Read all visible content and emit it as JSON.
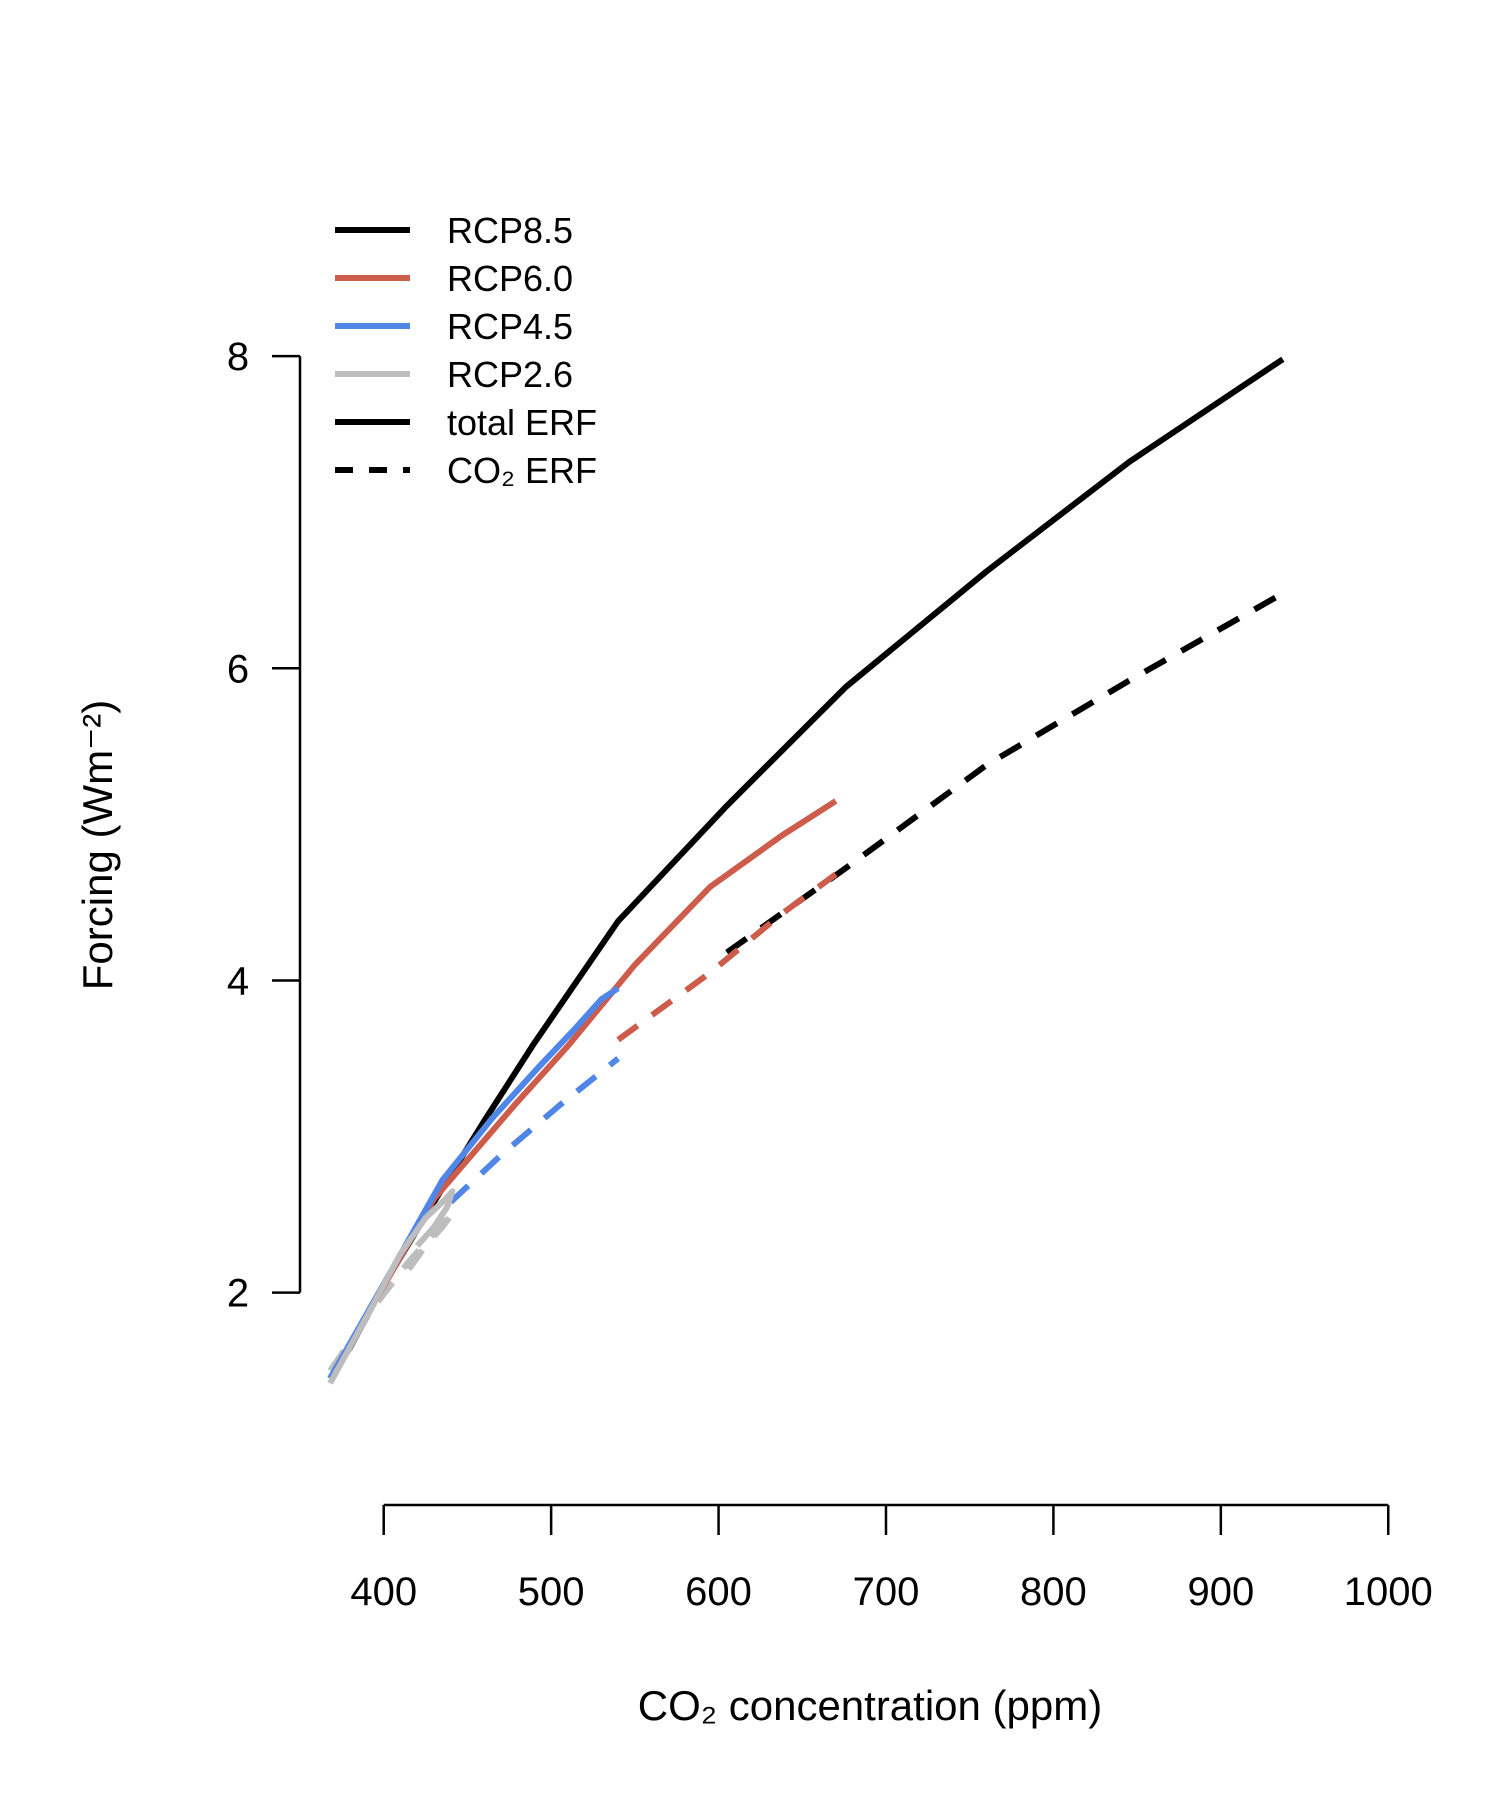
{
  "chart_data": {
    "type": "line",
    "xlabel": "CO₂ concentration (ppm)",
    "ylabel": "Forcing (Wm⁻²)",
    "xlim": [
      350,
      1010
    ],
    "ylim": [
      0.8,
      9.0
    ],
    "x_axis_range": [
      400,
      1000
    ],
    "y_axis_range": [
      2,
      8
    ],
    "xticks": [
      400,
      500,
      600,
      700,
      800,
      900,
      1000
    ],
    "yticks": [
      2,
      4,
      6,
      8
    ],
    "grid": false,
    "legend_position": "top-left",
    "legend": [
      {
        "label": "RCP8.5",
        "color": "#000000",
        "dash": "solid"
      },
      {
        "label": "RCP6.0",
        "color": "#cd5c4b",
        "dash": "solid"
      },
      {
        "label": "RCP4.5",
        "color": "#4f86e8",
        "dash": "solid"
      },
      {
        "label": "RCP2.6",
        "color": "#bdbdbd",
        "dash": "solid"
      },
      {
        "label": "total ERF",
        "color": "#000000",
        "dash": "solid"
      },
      {
        "label": "CO₂ ERF",
        "color": "#000000",
        "dash": "dashed"
      }
    ],
    "series": [
      {
        "scenario": "RCP8.5",
        "kind": "total ERF",
        "color": "#000000",
        "dash": "solid",
        "x": [
          368,
          380,
          400,
          430,
          460,
          490,
          540,
          605,
          676,
          760,
          845,
          937
        ],
        "y": [
          1.45,
          1.65,
          2.05,
          2.58,
          3.1,
          3.6,
          4.38,
          5.12,
          5.88,
          6.62,
          7.32,
          7.98
        ]
      },
      {
        "scenario": "RCP8.5",
        "kind": "CO₂ ERF",
        "color": "#000000",
        "dash": "dashed",
        "x": [
          605,
          676,
          760,
          845,
          937
        ],
        "y": [
          4.18,
          4.72,
          5.38,
          5.92,
          6.48
        ]
      },
      {
        "scenario": "RCP6.0",
        "kind": "total ERF",
        "color": "#cd5c4b",
        "dash": "solid",
        "x": [
          368,
          395,
          430,
          478,
          510,
          550,
          595,
          638,
          670
        ],
        "y": [
          1.45,
          1.95,
          2.6,
          3.2,
          3.58,
          4.1,
          4.6,
          4.93,
          5.15
        ]
      },
      {
        "scenario": "RCP6.0",
        "kind": "CO₂ ERF",
        "color": "#cd5c4b",
        "dash": "dashed",
        "x": [
          540,
          595,
          638,
          670
        ],
        "y": [
          3.62,
          4.05,
          4.43,
          4.68
        ]
      },
      {
        "scenario": "RCP4.5",
        "kind": "total ERF",
        "color": "#4f86e8",
        "dash": "solid",
        "x": [
          368,
          405,
          435,
          465,
          493,
          515,
          530,
          540
        ],
        "y": [
          1.45,
          2.15,
          2.72,
          3.12,
          3.45,
          3.7,
          3.88,
          3.95
        ]
      },
      {
        "scenario": "RCP4.5",
        "kind": "CO₂ ERF",
        "color": "#4f86e8",
        "dash": "dashed",
        "x": [
          440,
          470,
          505,
          540
        ],
        "y": [
          2.58,
          2.88,
          3.2,
          3.5
        ]
      },
      {
        "scenario": "RCP2.6",
        "kind": "total ERF",
        "color": "#bdbdbd",
        "dash": "solid",
        "x": [
          368,
          390,
          410,
          425,
          437,
          441,
          438,
          430,
          420
        ],
        "y": [
          1.42,
          1.85,
          2.25,
          2.48,
          2.6,
          2.65,
          2.55,
          2.42,
          2.3
        ]
      },
      {
        "scenario": "RCP2.6",
        "kind": "CO₂ ERF",
        "color": "#bdbdbd",
        "dash": "dashed",
        "x": [
          368,
          395,
          415,
          430,
          440,
          442,
          435,
          425,
          415
        ],
        "y": [
          1.5,
          1.92,
          2.2,
          2.38,
          2.5,
          2.52,
          2.42,
          2.3,
          2.15
        ]
      }
    ]
  }
}
